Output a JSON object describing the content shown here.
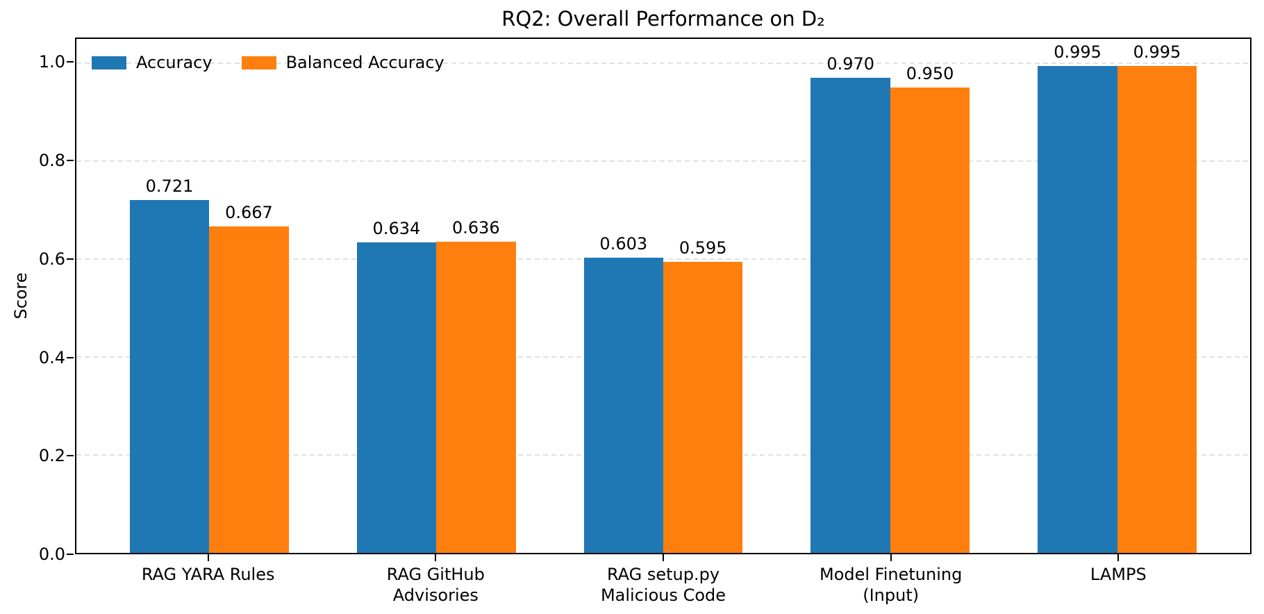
{
  "chart_data": {
    "type": "bar",
    "title": "RQ2: Overall Performance on D₂",
    "xlabel": "",
    "ylabel": "Score",
    "categories": [
      "RAG YARA Rules",
      "RAG GitHub\nAdvisories",
      "RAG setup.py\nMalicious Code",
      "Model Finetuning\n(Input)",
      "LAMPS"
    ],
    "series": [
      {
        "name": "Accuracy",
        "color": "#1f77b4",
        "values": [
          0.721,
          0.634,
          0.603,
          0.97,
          0.995
        ],
        "labels": [
          "0.721",
          "0.634",
          "0.603",
          "0.970",
          "0.995"
        ]
      },
      {
        "name": "Balanced Accuracy",
        "color": "#ff7f0e",
        "values": [
          0.667,
          0.636,
          0.595,
          0.95,
          0.995
        ],
        "labels": [
          "0.667",
          "0.636",
          "0.595",
          "0.950",
          "0.995"
        ]
      }
    ],
    "ytick_labels": [
      "0.0",
      "0.2",
      "0.4",
      "0.6",
      "0.8",
      "1.0"
    ],
    "ytick_values": [
      0.0,
      0.2,
      0.4,
      0.6,
      0.8,
      1.0
    ],
    "ylim": [
      0,
      1.05
    ],
    "xlim": [
      -0.585,
      4.585
    ],
    "bar_width_units": 0.35,
    "grid": {
      "axis": "y",
      "style": "dashed",
      "color": "#e0e0e0",
      "on": true
    },
    "legend": {
      "position": "upper-left",
      "frame": false
    }
  }
}
